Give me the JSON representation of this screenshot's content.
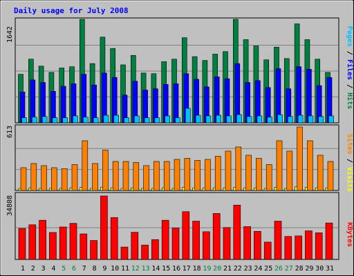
{
  "chart_data": {
    "type": "bar",
    "title": "Daily usage for July 2008",
    "colors": {
      "background": "#c0c0c0",
      "hits": "#008040",
      "files": "#0000ff",
      "pages": "#00c0ff",
      "visits": "#ffff00",
      "sites": "#ff8000",
      "kbytes": "#ff0000",
      "weekend_label": "#008040",
      "weekday_label": "#000000"
    },
    "categories": [
      "1",
      "2",
      "3",
      "4",
      "5",
      "6",
      "7",
      "8",
      "9",
      "10",
      "11",
      "12",
      "13",
      "14",
      "15",
      "16",
      "17",
      "18",
      "19",
      "20",
      "21",
      "22",
      "23",
      "24",
      "25",
      "26",
      "27",
      "28",
      "29",
      "30",
      "31"
    ],
    "weekend_days": [
      "5",
      "6",
      "12",
      "13",
      "19",
      "20",
      "26",
      "27"
    ],
    "panels": [
      {
        "id": "traffic",
        "axis_max_label": "1642",
        "ylim": [
          0,
          1642
        ],
        "side_labels": [
          {
            "text": "Pages",
            "color": "#00c0ff"
          },
          {
            "text": "/",
            "color": "#000000"
          },
          {
            "text": "Files",
            "color": "#0000ff"
          },
          {
            "text": "/",
            "color": "#000000"
          },
          {
            "text": "Hits",
            "color": "#008040"
          }
        ],
        "series": [
          {
            "name": "Hits",
            "color": "#008040",
            "values": [
              770,
              1010,
              900,
              800,
              870,
              890,
              1642,
              940,
              1360,
              1180,
              920,
              1070,
              790,
              780,
              970,
              1010,
              1350,
              1050,
              990,
              1090,
              1130,
              1642,
              1320,
              1220,
              1000,
              1200,
              1020,
              1570,
              1320,
              1010,
              800
            ]
          },
          {
            "name": "Files",
            "color": "#0000ff",
            "values": [
              490,
              680,
              640,
              500,
              580,
              620,
              770,
              600,
              790,
              720,
              440,
              660,
              520,
              540,
              610,
              620,
              780,
              690,
              570,
              730,
              700,
              940,
              640,
              670,
              560,
              860,
              540,
              890,
              850,
              590,
              720
            ]
          },
          {
            "name": "Pages",
            "color": "#00c0ff",
            "values": [
              80,
              90,
              100,
              80,
              80,
              110,
              90,
              80,
              120,
              120,
              80,
              110,
              80,
              80,
              110,
              80,
              230,
              120,
              110,
              120,
              110,
              130,
              100,
              110,
              90,
              130,
              100,
              120,
              110,
              100,
              110
            ]
          }
        ]
      },
      {
        "id": "visitors",
        "axis_max_label": "613",
        "ylim": [
          0,
          613
        ],
        "side_labels": [
          {
            "text": "Sites",
            "color": "#ff8000"
          },
          {
            "text": "/",
            "color": "#000000"
          },
          {
            "text": "Visits",
            "color": "#ffff00"
          }
        ],
        "series": [
          {
            "name": "Visits",
            "color": "#ffff00",
            "values": [
              20,
              25,
              20,
              20,
              20,
              25,
              30,
              20,
              30,
              25,
              20,
              25,
              20,
              20,
              25,
              20,
              30,
              25,
              25,
              25,
              25,
              30,
              25,
              25,
              20,
              30,
              20,
              35,
              30,
              25,
              25
            ]
          },
          {
            "name": "Sites",
            "color": "#ff8000",
            "values": [
              220,
              260,
              240,
              220,
              210,
              250,
              480,
              260,
              390,
              280,
              280,
              270,
              240,
              280,
              280,
              300,
              310,
              290,
              300,
              330,
              380,
              420,
              340,
              310,
              250,
              480,
              380,
              613,
              480,
              340,
              280
            ]
          }
        ]
      },
      {
        "id": "volume",
        "axis_max_label": "34808",
        "ylim": [
          0,
          34808
        ],
        "side_labels": [
          {
            "text": "KBytes",
            "color": "#ff0000"
          }
        ],
        "series": [
          {
            "name": "KBytes",
            "color": "#ff0000",
            "values": [
              17000,
              19000,
              21500,
              14800,
              17800,
              19800,
              14000,
              10400,
              34808,
              23000,
              6800,
              14900,
              7900,
              10900,
              21500,
              17200,
              26200,
              21000,
              15200,
              25200,
              17500,
              29800,
              18000,
              15400,
              9500,
              21000,
              12600,
              12900,
              15700,
              14600,
              20000
            ]
          }
        ]
      }
    ]
  }
}
